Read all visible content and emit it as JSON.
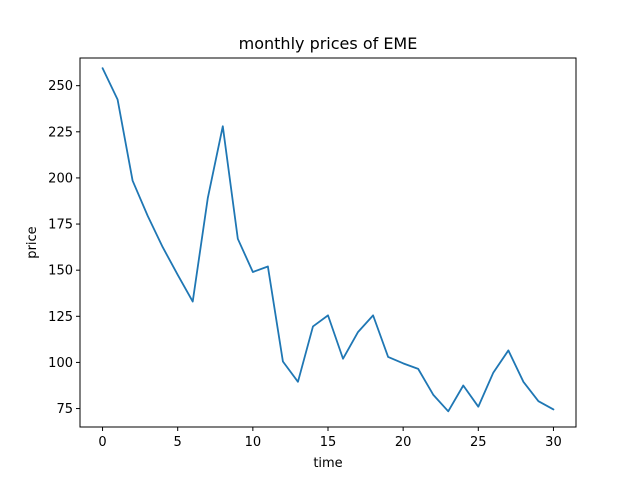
{
  "chart_data": {
    "type": "line",
    "title": "monthly prices of EME",
    "xlabel": "time",
    "ylabel": "price",
    "xlim": [
      -1.5,
      31.5
    ],
    "ylim": [
      65,
      265
    ],
    "xticks": [
      0,
      5,
      10,
      15,
      20,
      25,
      30
    ],
    "yticks": [
      75,
      100,
      125,
      150,
      175,
      200,
      225,
      250
    ],
    "grid": false,
    "legend": "none",
    "series": [
      {
        "color": "#1f77b4",
        "x": [
          0,
          1,
          2,
          3,
          4,
          5,
          6,
          7,
          8,
          9,
          10,
          11,
          12,
          13,
          14,
          15,
          16,
          17,
          18,
          19,
          20,
          21,
          22,
          23,
          24,
          25,
          26,
          27,
          28,
          29,
          30
        ],
        "y": [
          259.5,
          242.5,
          198.5,
          179.5,
          162.5,
          147.5,
          133,
          189,
          228,
          167,
          149,
          152,
          100.5,
          89.5,
          119.5,
          125.5,
          102,
          116.5,
          125.5,
          103,
          99.5,
          96.5,
          82.5,
          73.5,
          87.5,
          76,
          94.5,
          106.5,
          89.5,
          79,
          74.5
        ]
      }
    ]
  }
}
